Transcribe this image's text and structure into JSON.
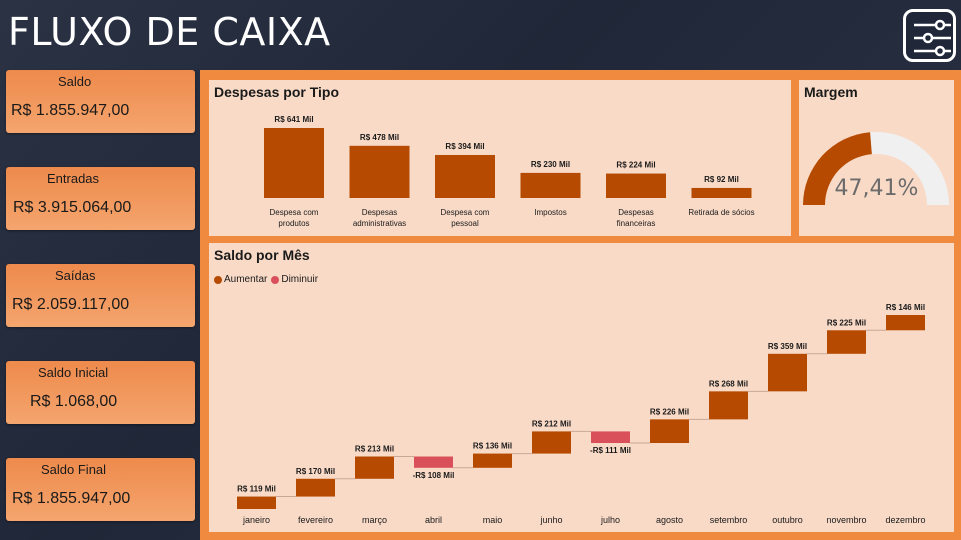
{
  "header": {
    "title": "FLUXO DE CAIXA",
    "filter_icon": "sliders-icon"
  },
  "kpis": [
    {
      "label": "Saldo",
      "value": "R$ 1.855.947,00"
    },
    {
      "label": "Entradas",
      "value": "R$ 3.915.064,00"
    },
    {
      "label": "Saídas",
      "value": "R$ 2.059.117,00"
    },
    {
      "label": "Saldo Inicial",
      "value": "R$ 1.068,00"
    },
    {
      "label": "Saldo Final",
      "value": "R$ 1.855.947,00"
    }
  ],
  "colors": {
    "increase": "#b54a00",
    "decrease": "#d9505a",
    "panel": "#f9dac7",
    "frame": "#f08a3e",
    "gauge_track": "#f0f0f0"
  },
  "chart_data": [
    {
      "type": "bar",
      "title": "Despesas por Tipo",
      "categories": [
        "Despesa com produtos",
        "Despesas administrativas",
        "Despesa com pessoal",
        "Impostos",
        "Despesas financeiras",
        "Retirada de sócios"
      ],
      "category_lines": [
        [
          "Despesa com",
          "produtos"
        ],
        [
          "Despesas",
          "administrativas"
        ],
        [
          "Despesa com",
          "pessoal"
        ],
        [
          "Impostos"
        ],
        [
          "Despesas",
          "financeiras"
        ],
        [
          "Retirada de sócios"
        ]
      ],
      "values": [
        641,
        478,
        394,
        230,
        224,
        92
      ],
      "data_labels": [
        "R$ 641 Mil",
        "R$ 478 Mil",
        "R$ 394 Mil",
        "R$ 230 Mil",
        "R$ 224 Mil",
        "R$ 92 Mil"
      ],
      "unit": "R$ Mil"
    },
    {
      "type": "gauge",
      "title": "Margem",
      "value": 47.41,
      "label": "47,41%",
      "range": [
        0,
        100
      ]
    },
    {
      "type": "waterfall",
      "title": "Saldo por Mês",
      "legend": [
        "Aumentar",
        "Diminuir"
      ],
      "categories": [
        "janeiro",
        "fevereiro",
        "março",
        "abril",
        "maio",
        "junho",
        "julho",
        "agosto",
        "setembro",
        "outubro",
        "novembro",
        "dezembro"
      ],
      "values": [
        119,
        170,
        213,
        -108,
        136,
        212,
        -111,
        226,
        268,
        359,
        225,
        146
      ],
      "data_labels": [
        "R$ 119 Mil",
        "R$ 170 Mil",
        "R$ 213 Mil",
        "-R$ 108 Mil",
        "R$ 136 Mil",
        "R$ 212 Mil",
        "-R$ 111 Mil",
        "R$ 226 Mil",
        "R$ 268 Mil",
        "R$ 359 Mil",
        "R$ 225 Mil",
        "R$ 146 Mil"
      ],
      "unit": "R$ Mil"
    }
  ]
}
